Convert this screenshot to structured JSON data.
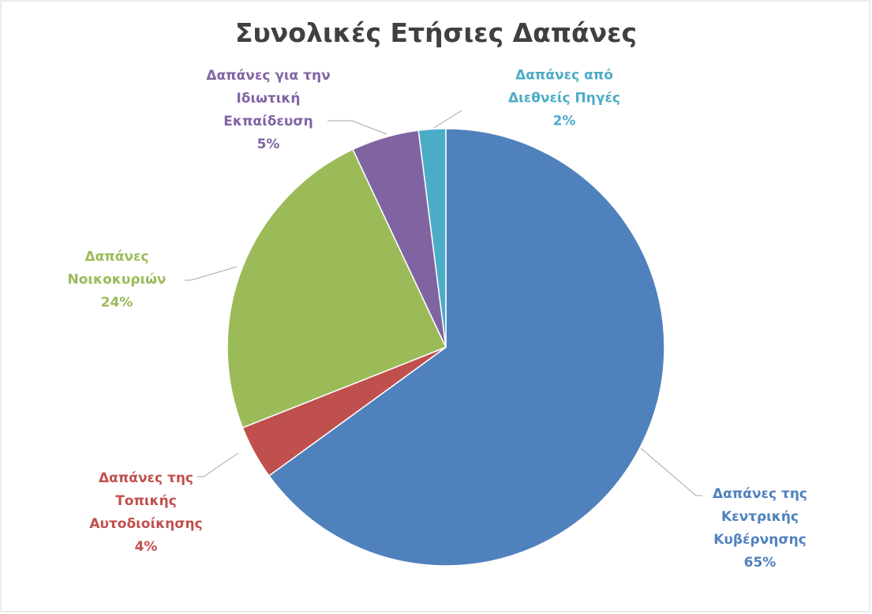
{
  "chart_data": {
    "type": "pie",
    "title": "Συνολικές Ετήσιες Δαπάνες",
    "categories": [
      "Δαπάνες της Κεντρικής Κυβέρνησης",
      "Δαπάνες της Τοπικής Αυτοδιοίκησης",
      "Δαπάνες Νοικοκυριών",
      "Δαπάνες για την Ιδιωτική Εκπαίδευση",
      "Δαπάνες από Διεθνείς Πηγές"
    ],
    "values": [
      65,
      4,
      24,
      5,
      2
    ],
    "value_labels": [
      "65%",
      "4%",
      "24%",
      "5%",
      "2%"
    ],
    "colors": [
      "#4f81bd",
      "#c0504d",
      "#9bbb59",
      "#8064a2",
      "#4bacc6"
    ]
  }
}
